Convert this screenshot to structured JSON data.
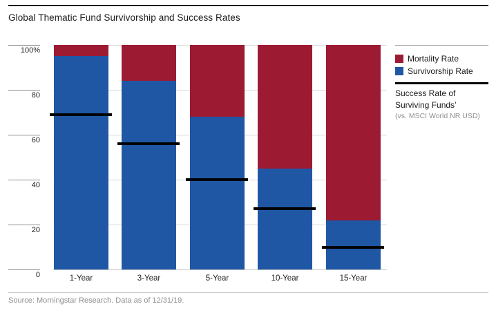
{
  "title": "Global Thematic Fund Survivorship and Success Rates",
  "source": "Source: Morningstar Research. Data as of 12/31/19.",
  "colors": {
    "mortality": "#9d1b32",
    "survivorship": "#1f57a5",
    "success_line": "#000000",
    "gridline": "#d8d8d8",
    "text": "#1a1a1a",
    "muted": "#8e8e8e"
  },
  "legend": {
    "mortality_label": "Mortality Rate",
    "survivorship_label": "Survivorship Rate",
    "success_label_line1": "Success Rate of",
    "success_label_line2": "Surviving Funds’",
    "success_sublabel": "(vs. MSCI World NR USD)"
  },
  "y_axis": {
    "tick_labels": [
      "100%",
      "80",
      "60",
      "40",
      "20",
      "0"
    ],
    "tick_values": [
      100,
      80,
      60,
      40,
      20,
      0
    ]
  },
  "chart_data": {
    "type": "bar",
    "stacked": true,
    "title": "Global Thematic Fund Survivorship and Success Rates",
    "categories": [
      "1-Year",
      "3-Year",
      "5-Year",
      "10-Year",
      "15-Year"
    ],
    "series": [
      {
        "name": "Survivorship Rate",
        "color": "#1f57a5",
        "values": [
          95,
          84,
          68,
          45,
          22
        ]
      },
      {
        "name": "Mortality Rate",
        "color": "#9d1b32",
        "values": [
          5,
          16,
          32,
          55,
          78
        ]
      }
    ],
    "line_markers": {
      "name": "Success Rate of Surviving Funds (vs. MSCI World NR USD)",
      "color": "#000000",
      "values": [
        69,
        56,
        40,
        27,
        10
      ]
    },
    "xlabel": "",
    "ylabel": "",
    "ylim": [
      0,
      100
    ],
    "grid": true,
    "legend_position": "right"
  }
}
